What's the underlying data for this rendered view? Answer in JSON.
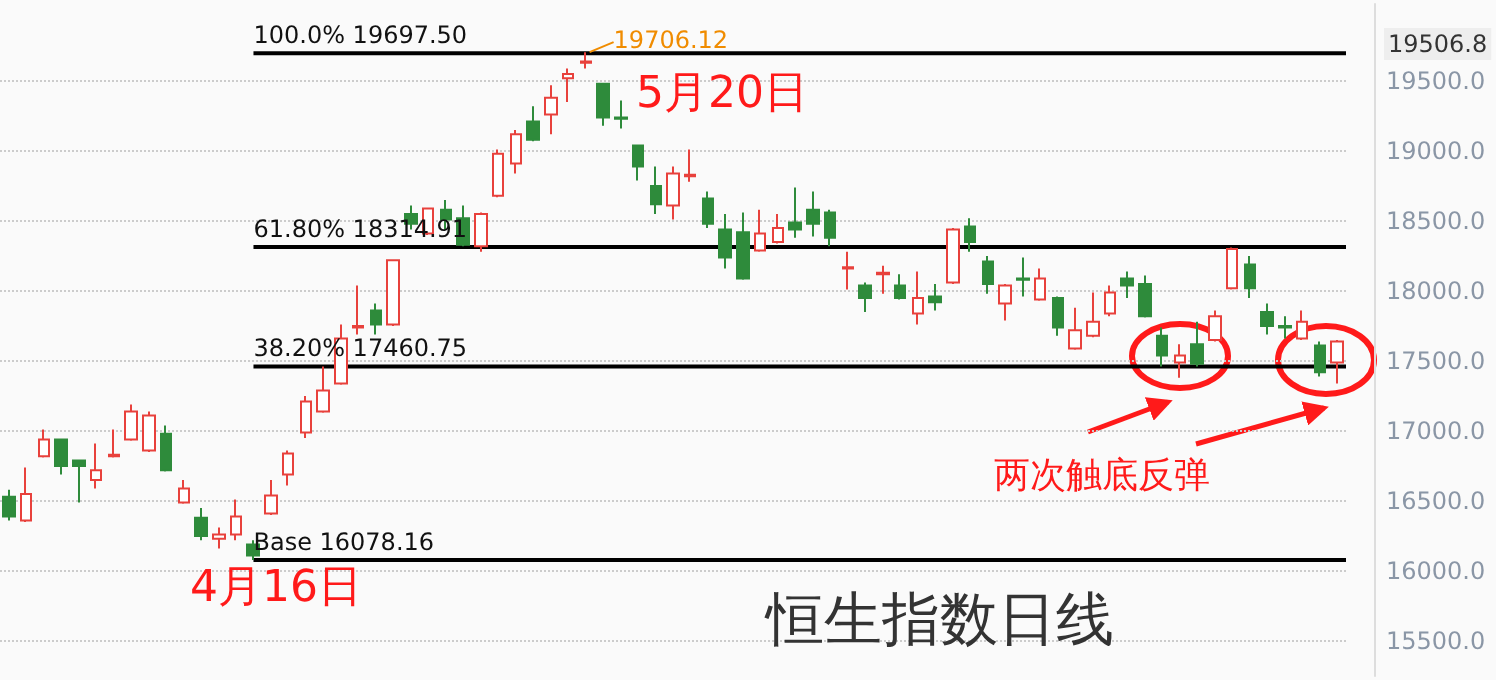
{
  "chart_data": {
    "type": "candlestick",
    "categories": [
      null,
      null,
      null,
      null,
      null,
      null,
      null,
      null,
      null,
      null,
      null,
      null,
      null,
      null,
      null,
      null,
      null,
      null,
      null,
      null,
      null,
      null,
      null,
      null,
      null,
      null,
      null,
      null,
      null,
      null,
      null,
      null,
      null,
      null,
      null,
      null,
      null,
      null,
      null,
      null,
      null,
      null,
      null,
      null,
      null,
      null,
      null,
      null,
      null,
      null,
      null,
      null,
      null,
      null,
      null,
      null,
      null,
      null,
      null,
      null,
      null,
      null,
      null,
      null,
      null,
      null,
      null,
      null,
      null,
      null,
      null,
      null,
      null,
      null,
      null,
      null,
      null
    ],
    "ohlc": [
      [
        16530,
        16580,
        16360,
        16390
      ],
      [
        16360,
        16740,
        16350,
        16550
      ],
      [
        16820,
        17010,
        16810,
        16940
      ],
      [
        16940,
        16940,
        16690,
        16750
      ],
      [
        16790,
        16790,
        16490,
        16750
      ],
      [
        16650,
        16910,
        16590,
        16720
      ],
      [
        16820,
        17010,
        16810,
        16830
      ],
      [
        16940,
        17190,
        16930,
        17140
      ],
      [
        16860,
        17140,
        16850,
        17110
      ],
      [
        16980,
        17040,
        16710,
        16720
      ],
      [
        16490,
        16650,
        16480,
        16590
      ],
      [
        16380,
        16450,
        16220,
        16250
      ],
      [
        16230,
        16310,
        16160,
        16260
      ],
      [
        16260,
        16510,
        16220,
        16390
      ],
      [
        16190,
        16220,
        16078.16,
        16110
      ],
      [
        16410,
        16650,
        16400,
        16540
      ],
      [
        16690,
        16860,
        16610,
        16840
      ],
      [
        16990,
        17250,
        16950,
        17210
      ],
      [
        17140,
        17460,
        17130,
        17290
      ],
      [
        17340,
        17760,
        17330,
        17660
      ],
      [
        17740,
        18040,
        17690,
        17750
      ],
      [
        17860,
        17910,
        17690,
        17760
      ],
      [
        17760,
        18220,
        17750,
        18220
      ],
      [
        18550,
        18610,
        18440,
        18480
      ],
      [
        18410,
        18590,
        18400,
        18590
      ],
      [
        18580,
        18650,
        18440,
        18510
      ],
      [
        18520,
        18610,
        18320,
        18330
      ],
      [
        18320,
        18560,
        18280,
        18550
      ],
      [
        18680,
        19010,
        18670,
        18980
      ],
      [
        18910,
        19150,
        18840,
        19120
      ],
      [
        19210,
        19320,
        19070,
        19080
      ],
      [
        19260,
        19470,
        19120,
        19380
      ],
      [
        19520,
        19590,
        19350,
        19550
      ],
      [
        19630,
        19706.12,
        19590,
        19640
      ],
      [
        19480,
        19480,
        19180,
        19240
      ],
      [
        19240,
        19360,
        19160,
        19230
      ],
      [
        19040,
        19040,
        18790,
        18890
      ],
      [
        18750,
        18890,
        18550,
        18620
      ],
      [
        18610,
        18890,
        18510,
        18840
      ],
      [
        18820,
        19010,
        18780,
        18830
      ],
      [
        18660,
        18710,
        18450,
        18480
      ],
      [
        18440,
        18550,
        18160,
        18240
      ],
      [
        18420,
        18560,
        18080,
        18090
      ],
      [
        18290,
        18580,
        18280,
        18410
      ],
      [
        18350,
        18550,
        18340,
        18450
      ],
      [
        18490,
        18740,
        18380,
        18440
      ],
      [
        18580,
        18710,
        18390,
        18480
      ],
      [
        18560,
        18580,
        18320,
        18380
      ],
      [
        18160,
        18280,
        18010,
        18170
      ],
      [
        18040,
        18060,
        17850,
        17950
      ],
      [
        18120,
        18180,
        17980,
        18130
      ],
      [
        18040,
        18120,
        17940,
        17950
      ],
      [
        17840,
        18140,
        17760,
        17950
      ],
      [
        17960,
        18050,
        17860,
        17920
      ],
      [
        18060,
        18450,
        18050,
        18440
      ],
      [
        18460,
        18520,
        18280,
        18350
      ],
      [
        18210,
        18250,
        17980,
        18050
      ],
      [
        17910,
        18050,
        17790,
        18040
      ],
      [
        18090,
        18240,
        17960,
        18080
      ],
      [
        17940,
        18160,
        17930,
        18090
      ],
      [
        17950,
        17960,
        17680,
        17740
      ],
      [
        17590,
        17880,
        17580,
        17720
      ],
      [
        17680,
        17990,
        17670,
        17780
      ],
      [
        17840,
        18040,
        17820,
        17990
      ],
      [
        18090,
        18140,
        17950,
        18040
      ],
      [
        18050,
        18110,
        17810,
        17820
      ],
      [
        17680,
        17740,
        17460,
        17540
      ],
      [
        17490,
        17620,
        17380,
        17540
      ],
      [
        17620,
        17780,
        17460,
        17480
      ],
      [
        17650,
        17860,
        17640,
        17820
      ],
      [
        18020,
        18310,
        18010,
        18300
      ],
      [
        18190,
        18250,
        17950,
        18020
      ],
      [
        17850,
        17910,
        17690,
        17750
      ],
      [
        17750,
        17820,
        17660,
        17740
      ],
      [
        17660,
        17860,
        17650,
        17780
      ],
      [
        17610,
        17640,
        17390,
        17420
      ],
      [
        17490,
        17650,
        17340,
        17640
      ]
    ],
    "colors": [
      "#2e8b3b",
      "#e8413c",
      "#e8413c",
      "#2e8b3b",
      "#2e8b3b",
      "#e8413c",
      "#e8413c",
      "#e8413c",
      "#e8413c",
      "#2e8b3b",
      "#e8413c",
      "#2e8b3b",
      "#e8413c",
      "#e8413c",
      "#2e8b3b",
      "#e8413c",
      "#e8413c",
      "#e8413c",
      "#e8413c",
      "#e8413c",
      "#e8413c",
      "#2e8b3b",
      "#e8413c",
      "#2e8b3b",
      "#e8413c",
      "#2e8b3b",
      "#2e8b3b",
      "#e8413c",
      "#e8413c",
      "#e8413c",
      "#2e8b3b",
      "#e8413c",
      "#e8413c",
      "#e8413c",
      "#2e8b3b",
      "#2e8b3b",
      "#2e8b3b",
      "#2e8b3b",
      "#e8413c",
      "#e8413c",
      "#2e8b3b",
      "#2e8b3b",
      "#2e8b3b",
      "#e8413c",
      "#e8413c",
      "#2e8b3b",
      "#2e8b3b",
      "#2e8b3b",
      "#e8413c",
      "#2e8b3b",
      "#e8413c",
      "#2e8b3b",
      "#e8413c",
      "#2e8b3b",
      "#e8413c",
      "#2e8b3b",
      "#2e8b3b",
      "#e8413c",
      "#2e8b3b",
      "#e8413c",
      "#2e8b3b",
      "#e8413c",
      "#e8413c",
      "#e8413c",
      "#2e8b3b",
      "#2e8b3b",
      "#2e8b3b",
      "#e8413c",
      "#2e8b3b",
      "#e8413c",
      "#e8413c",
      "#2e8b3b",
      "#2e8b3b",
      "#2e8b3b",
      "#e8413c",
      "#2e8b3b",
      "#e8413c"
    ],
    "ylim": [
      15250,
      20050
    ],
    "yticks": [
      {
        "value": 15500,
        "label": "15500.0"
      },
      {
        "value": 16000,
        "label": "16000.0"
      },
      {
        "value": 16500,
        "label": "16500.0"
      },
      {
        "value": 17000,
        "label": "17000.0"
      },
      {
        "value": 17500,
        "label": "17500.0"
      },
      {
        "value": 18000,
        "label": "18000.0"
      },
      {
        "value": 18500,
        "label": "18500.0"
      },
      {
        "value": 19000,
        "label": "19000.0"
      },
      {
        "value": 19500,
        "label": "19500.0"
      }
    ],
    "tick_labels": "y",
    "grid": "y",
    "ref_lines": [
      {
        "axis": "y",
        "value": 19697.5,
        "label": "100.0% 19697.50",
        "color": "#000000"
      },
      {
        "axis": "y",
        "value": 18314.91,
        "label": "61.80% 18314.91",
        "color": "#000000"
      },
      {
        "axis": "y",
        "value": 17460.75,
        "label": "38.20% 17460.75",
        "color": "#000000"
      },
      {
        "axis": "y",
        "value": 16078.16,
        "label": "Base 16078.16",
        "color": "#000000"
      }
    ],
    "annotations": [
      {
        "text": "19706.12",
        "y": 19706.12
      },
      "19506.8",
      "5月20日",
      "4月16日",
      "两次触底反弹",
      "恒生指数日线"
    ]
  }
}
